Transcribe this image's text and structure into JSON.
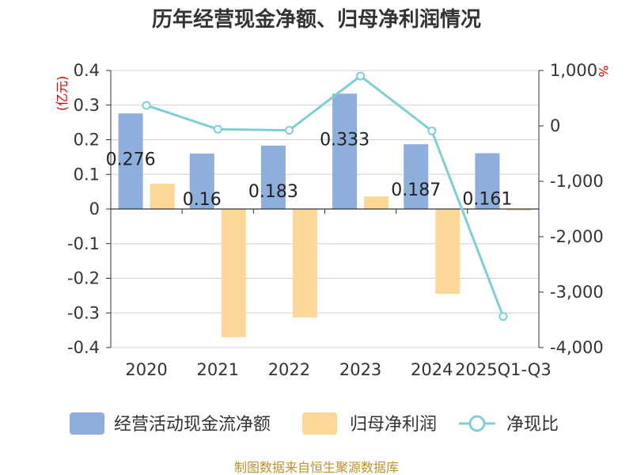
{
  "chart_data": {
    "type": "bar",
    "title": "历年经营现金净额、归母净利润情况",
    "categories": [
      "2020",
      "2021",
      "2022",
      "2023",
      "2024",
      "2025Q1-Q3"
    ],
    "series": [
      {
        "name": "经营活动现金流净额",
        "axis": "left",
        "type": "bar",
        "color": "#8eaedb",
        "values": [
          0.276,
          0.16,
          0.183,
          0.333,
          0.187,
          0.161
        ]
      },
      {
        "name": "归母净利润",
        "axis": "left",
        "type": "bar",
        "color": "#fdd796",
        "values": [
          0.073,
          -0.37,
          -0.313,
          0.036,
          -0.245,
          -0.005
        ]
      },
      {
        "name": "净现比",
        "axis": "right",
        "type": "line",
        "color": "#7fd0d4",
        "values": [
          370,
          -60,
          -80,
          900,
          -90,
          -3440
        ]
      }
    ],
    "data_labels": [
      "0.276",
      "0.16",
      "0.183",
      "0.333",
      "0.187",
      "0.161"
    ],
    "y_left": {
      "label": "(亿元)",
      "ylim": [
        -0.4,
        0.4
      ],
      "ticks": [
        0.4,
        0.3,
        0.2,
        0.1,
        0,
        -0.1,
        -0.2,
        -0.3,
        -0.4
      ],
      "tick_labels": [
        "0.4",
        "0.3",
        "0.2",
        "0.1",
        "0",
        "-0.1",
        "-0.2",
        "-0.3",
        "-0.4"
      ]
    },
    "y_right": {
      "label": "%",
      "ylim": [
        -4000,
        1000
      ],
      "ticks": [
        1000,
        0,
        -1000,
        -2000,
        -3000,
        -4000
      ],
      "tick_labels": [
        "1,000",
        "0",
        "-1,000",
        "-2,000",
        "-3,000",
        "-4,000"
      ]
    },
    "legend_position": "bottom",
    "grid": true
  },
  "footer": "制图数据来自恒生聚源数据库"
}
